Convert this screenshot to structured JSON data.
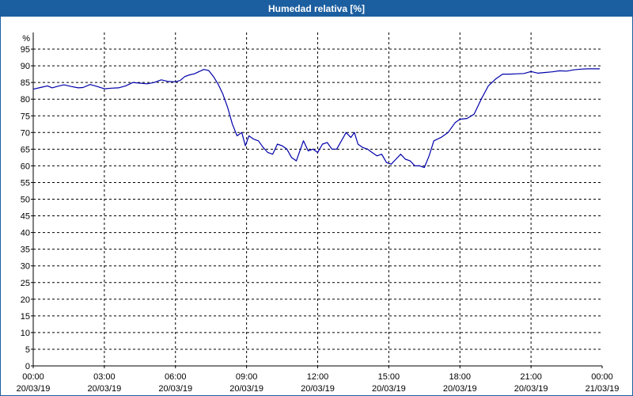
{
  "window": {
    "title": "Humedad relativa [%]",
    "background": "#ffffff",
    "title_bar_color": "#1c5fa0",
    "line_color": "#0000aa"
  },
  "chart_data": {
    "type": "line",
    "title": "Humedad relativa [%]",
    "ylabel": "%",
    "ylim": [
      0,
      100
    ],
    "yticks": [
      0,
      5,
      10,
      15,
      20,
      25,
      30,
      35,
      40,
      45,
      50,
      55,
      60,
      65,
      70,
      75,
      80,
      85,
      90,
      95
    ],
    "xlim": [
      0,
      24
    ],
    "xticks": [
      {
        "hour": 0,
        "time": "00:00",
        "date": "20/03/19"
      },
      {
        "hour": 3,
        "time": "03:00",
        "date": "20/03/19"
      },
      {
        "hour": 6,
        "time": "06:00",
        "date": "20/03/19"
      },
      {
        "hour": 9,
        "time": "09:00",
        "date": "20/03/19"
      },
      {
        "hour": 12,
        "time": "12:00",
        "date": "20/03/19"
      },
      {
        "hour": 15,
        "time": "15:00",
        "date": "20/03/19"
      },
      {
        "hour": 18,
        "time": "18:00",
        "date": "20/03/19"
      },
      {
        "hour": 21,
        "time": "21:00",
        "date": "20/03/19"
      },
      {
        "hour": 24,
        "time": "00:00",
        "date": "21/03/19"
      }
    ],
    "grid": true,
    "series": [
      {
        "color": "#0000aa",
        "points": [
          [
            0.0,
            83.0
          ],
          [
            0.3,
            83.5
          ],
          [
            0.6,
            84.0
          ],
          [
            0.8,
            83.4
          ],
          [
            1.0,
            83.8
          ],
          [
            1.3,
            84.3
          ],
          [
            1.6,
            83.8
          ],
          [
            1.9,
            83.4
          ],
          [
            2.1,
            83.5
          ],
          [
            2.4,
            84.4
          ],
          [
            2.7,
            83.8
          ],
          [
            3.0,
            83.1
          ],
          [
            3.3,
            83.3
          ],
          [
            3.6,
            83.4
          ],
          [
            3.9,
            84.0
          ],
          [
            4.2,
            85.0
          ],
          [
            4.5,
            84.8
          ],
          [
            4.8,
            84.6
          ],
          [
            5.1,
            85.0
          ],
          [
            5.4,
            85.8
          ],
          [
            5.7,
            85.3
          ],
          [
            6.0,
            85.2
          ],
          [
            6.2,
            85.6
          ],
          [
            6.4,
            86.8
          ],
          [
            6.6,
            87.3
          ],
          [
            6.8,
            87.6
          ],
          [
            7.0,
            88.3
          ],
          [
            7.2,
            88.9
          ],
          [
            7.4,
            88.6
          ],
          [
            7.6,
            86.8
          ],
          [
            7.8,
            84.5
          ],
          [
            8.0,
            81.5
          ],
          [
            8.2,
            77.5
          ],
          [
            8.4,
            72.5
          ],
          [
            8.6,
            69.0
          ],
          [
            8.8,
            70.0
          ],
          [
            8.95,
            66.0
          ],
          [
            9.1,
            69.0
          ],
          [
            9.3,
            68.0
          ],
          [
            9.5,
            67.5
          ],
          [
            9.7,
            65.5
          ],
          [
            9.9,
            64.0
          ],
          [
            10.1,
            63.5
          ],
          [
            10.3,
            66.5
          ],
          [
            10.5,
            66.0
          ],
          [
            10.7,
            65.0
          ],
          [
            10.9,
            62.5
          ],
          [
            11.1,
            61.5
          ],
          [
            11.4,
            67.5
          ],
          [
            11.6,
            64.5
          ],
          [
            11.8,
            65.0
          ],
          [
            12.0,
            64.0
          ],
          [
            12.2,
            66.5
          ],
          [
            12.4,
            67.0
          ],
          [
            12.6,
            65.0
          ],
          [
            12.8,
            65.0
          ],
          [
            13.0,
            67.5
          ],
          [
            13.2,
            70.0
          ],
          [
            13.4,
            68.5
          ],
          [
            13.55,
            70.0
          ],
          [
            13.7,
            66.5
          ],
          [
            13.9,
            65.5
          ],
          [
            14.1,
            65.0
          ],
          [
            14.3,
            64.0
          ],
          [
            14.5,
            63.0
          ],
          [
            14.7,
            63.5
          ],
          [
            14.9,
            61.0
          ],
          [
            15.1,
            60.5
          ],
          [
            15.3,
            62.0
          ],
          [
            15.5,
            63.5
          ],
          [
            15.7,
            62.0
          ],
          [
            15.9,
            61.5
          ],
          [
            16.1,
            60.0
          ],
          [
            16.3,
            60.0
          ],
          [
            16.5,
            59.5
          ],
          [
            16.7,
            63.0
          ],
          [
            16.9,
            67.5
          ],
          [
            17.2,
            68.5
          ],
          [
            17.5,
            70.0
          ],
          [
            17.8,
            73.0
          ],
          [
            18.0,
            74.0
          ],
          [
            18.3,
            74.2
          ],
          [
            18.6,
            75.5
          ],
          [
            18.9,
            80.0
          ],
          [
            19.2,
            84.0
          ],
          [
            19.5,
            86.0
          ],
          [
            19.8,
            87.5
          ],
          [
            20.1,
            87.5
          ],
          [
            20.4,
            87.6
          ],
          [
            20.7,
            87.7
          ],
          [
            21.0,
            88.3
          ],
          [
            21.3,
            87.8
          ],
          [
            21.6,
            88.0
          ],
          [
            21.9,
            88.2
          ],
          [
            22.2,
            88.5
          ],
          [
            22.5,
            88.4
          ],
          [
            22.8,
            88.8
          ],
          [
            23.1,
            89.0
          ],
          [
            23.4,
            89.1
          ],
          [
            23.7,
            89.1
          ],
          [
            23.9,
            89.1
          ]
        ]
      }
    ]
  }
}
